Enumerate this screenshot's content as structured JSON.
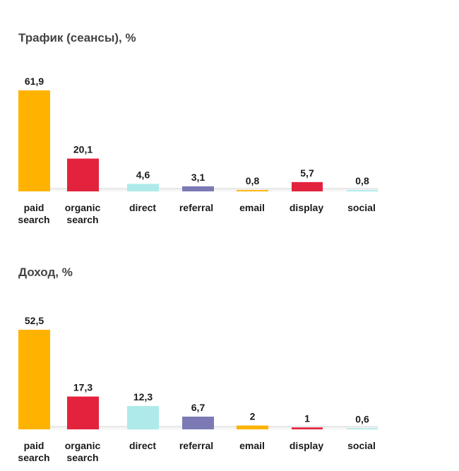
{
  "colors": {
    "paid_search": "#FFB300",
    "organic_search": "#E3223E",
    "direct": "#AEEAEA",
    "referral": "#7B7AB5",
    "email": "#FFB300",
    "display": "#E3223E",
    "social": "#AEEAEA"
  },
  "chart_data": [
    {
      "type": "bar",
      "title": "Трафик (сеансы), %",
      "categories": [
        [
          "paid",
          "search"
        ],
        [
          "organic",
          "search"
        ],
        [
          "direct"
        ],
        [
          "referral"
        ],
        [
          "email"
        ],
        [
          "display"
        ],
        [
          "social"
        ]
      ],
      "values": [
        61.9,
        20.1,
        4.6,
        3.1,
        0.8,
        5.7,
        0.8
      ],
      "value_labels": [
        "61,9",
        "20,1",
        "4,6",
        "3,1",
        "0,8",
        "5,7",
        "0,8"
      ],
      "colors": [
        "#FFB300",
        "#E3223E",
        "#AEEAEA",
        "#7B7AB5",
        "#FFB300",
        "#E3223E",
        "#AEEAEA"
      ],
      "xlabel": "",
      "ylabel": "",
      "grid": false
    },
    {
      "type": "bar",
      "title": "Доход, %",
      "categories": [
        [
          "paid",
          "search"
        ],
        [
          "organic",
          "search"
        ],
        [
          "direct"
        ],
        [
          "referral"
        ],
        [
          "email"
        ],
        [
          "display"
        ],
        [
          "social"
        ]
      ],
      "values": [
        52.5,
        17.3,
        12.3,
        6.7,
        2,
        1,
        0.6
      ],
      "value_labels": [
        "52,5",
        "17,3",
        "12,3",
        "6,7",
        "2",
        "1",
        "0,6"
      ],
      "colors": [
        "#FFB300",
        "#E3223E",
        "#AEEAEA",
        "#7B7AB5",
        "#FFB300",
        "#E3223E",
        "#AEEAEA"
      ],
      "xlabel": "",
      "ylabel": "",
      "grid": false
    }
  ]
}
